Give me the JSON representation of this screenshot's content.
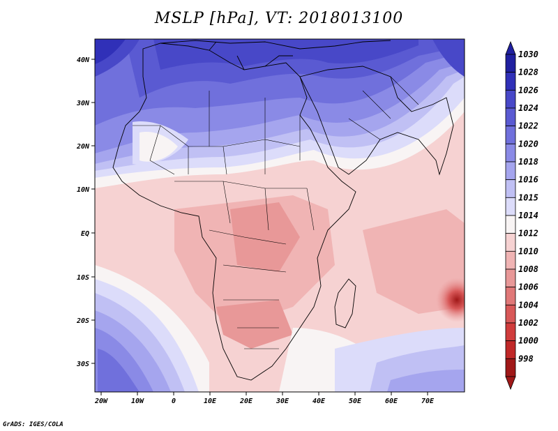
{
  "title": "MSLP [hPa], VT: 2018013100",
  "credit": "GrADS: IGES/COLA",
  "map": {
    "lat_ticks": [
      "40N",
      "30N",
      "20N",
      "10N",
      "EQ",
      "10S",
      "20S",
      "30S"
    ],
    "lon_ticks": [
      "20W",
      "10W",
      "0",
      "10E",
      "20E",
      "30E",
      "40E",
      "50E",
      "60E",
      "70E"
    ]
  },
  "colorbar": {
    "levels": [
      "1030",
      "1028",
      "1026",
      "1024",
      "1022",
      "1020",
      "1018",
      "1016",
      "1015",
      "1014",
      "1012",
      "1010",
      "1008",
      "1006",
      "1004",
      "1002",
      "1000",
      "998"
    ],
    "colors": [
      "#2020a0",
      "#3030b8",
      "#4848c8",
      "#5a5ad2",
      "#7070dc",
      "#8a8ae6",
      "#a5a5ee",
      "#c0c0f4",
      "#dcdcfa",
      "#f8f4f4",
      "#f6d2d2",
      "#f0b4b4",
      "#e89898",
      "#e07878",
      "#d85858",
      "#d03c3c",
      "#c02828",
      "#a01818"
    ]
  }
}
